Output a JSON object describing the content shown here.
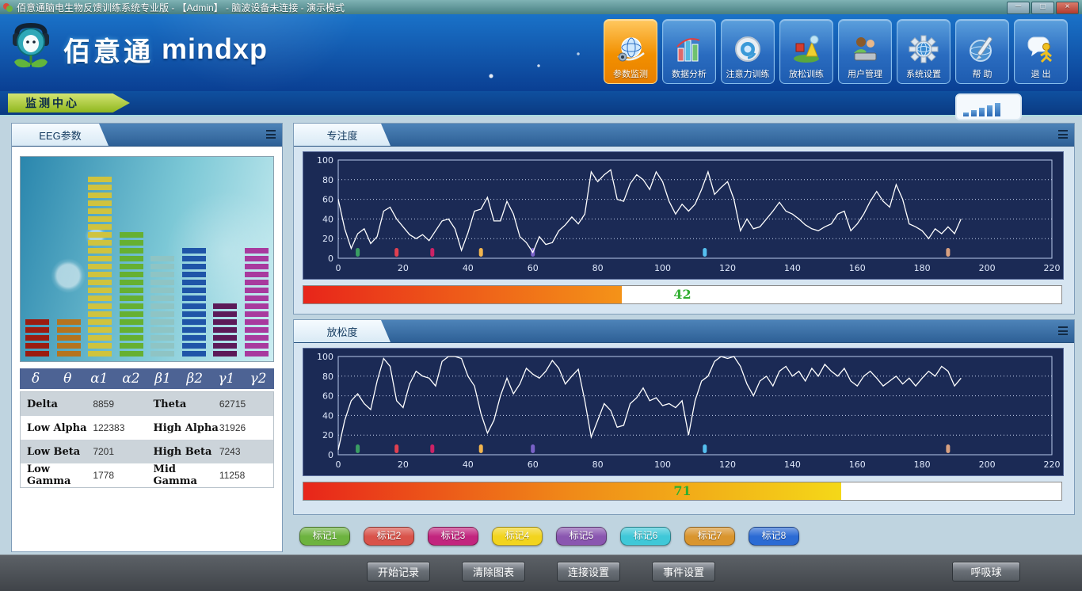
{
  "window": {
    "title": "佰意通脑电生物反馈训练系统专业版 - 【Admin】 - 脑波设备未连接 - 演示模式",
    "controls": {
      "minimize": "－",
      "maximize": "□",
      "close": "×"
    }
  },
  "header": {
    "brand_cn": "佰意通",
    "brand_en": "mindxp",
    "toolbar": [
      {
        "label": "参数监测",
        "icon": "monitor-globe-icon",
        "active": true
      },
      {
        "label": "数据分析",
        "icon": "bar-chart-icon",
        "active": false
      },
      {
        "label": "注意力训练",
        "icon": "attention-shutter-icon",
        "active": false
      },
      {
        "label": "放松训练",
        "icon": "relax-shapes-icon",
        "active": false
      },
      {
        "label": "用户管理",
        "icon": "users-icon",
        "active": false
      },
      {
        "label": "系统设置",
        "icon": "gear-globe-icon",
        "active": false
      },
      {
        "label": "帮 助",
        "icon": "help-pen-globe-icon",
        "active": false
      },
      {
        "label": "退 出",
        "icon": "exit-messenger-icon",
        "active": false
      }
    ]
  },
  "nav": {
    "center_tab": "监测中心",
    "signal_icon": "signal-strength-icon"
  },
  "eeg": {
    "tab": "EEG参数",
    "equalizer": [
      {
        "band": "delta",
        "color": "#9b1c10",
        "segments": 5
      },
      {
        "band": "theta",
        "color": "#b5741f",
        "segments": 5
      },
      {
        "band": "alpha1",
        "color": "#cfc33e",
        "segments": 23
      },
      {
        "band": "alpha2",
        "color": "#66b031",
        "segments": 16
      },
      {
        "band": "beta1",
        "color": "#8fc4c4",
        "segments": 13
      },
      {
        "band": "beta2",
        "color": "#1f55a8",
        "segments": 14
      },
      {
        "band": "gamma1",
        "color": "#5c1a58",
        "segments": 7
      },
      {
        "band": "gamma2",
        "color": "#a83a9e",
        "segments": 14
      }
    ],
    "bands": [
      "δ",
      "θ",
      "α1",
      "α2",
      "β1",
      "β2",
      "γ1",
      "γ2"
    ],
    "table": [
      {
        "l1": "Delta",
        "v1": "8859",
        "l2": "Theta",
        "v2": "62715"
      },
      {
        "l1": "Low Alpha",
        "v1": "122383",
        "l2": "High Alpha",
        "v2": "31926"
      },
      {
        "l1": "Low Beta",
        "v1": "7201",
        "l2": "High Beta",
        "v2": "7243"
      },
      {
        "l1": "Low Gamma",
        "v1": "1778",
        "l2": "Mid Gamma",
        "v2": "11258"
      }
    ]
  },
  "chart_data": [
    {
      "type": "line",
      "title": "专注度",
      "xlim": [
        0,
        220
      ],
      "ylim": [
        0,
        100
      ],
      "x_ticks": [
        0,
        20,
        40,
        60,
        80,
        100,
        120,
        140,
        160,
        180,
        200,
        220
      ],
      "y_ticks": [
        0,
        20,
        40,
        60,
        80,
        100
      ],
      "x_step": 2,
      "values": [
        60,
        30,
        10,
        25,
        30,
        15,
        22,
        48,
        52,
        40,
        32,
        24,
        20,
        24,
        18,
        28,
        38,
        40,
        30,
        8,
        26,
        48,
        50,
        62,
        38,
        38,
        58,
        45,
        22,
        16,
        6,
        22,
        14,
        16,
        28,
        34,
        42,
        35,
        45,
        88,
        78,
        85,
        90,
        60,
        58,
        76,
        85,
        80,
        70,
        88,
        78,
        58,
        45,
        55,
        48,
        55,
        70,
        88,
        65,
        72,
        78,
        60,
        28,
        40,
        30,
        32,
        40,
        48,
        57,
        48,
        45,
        40,
        34,
        30,
        28,
        32,
        35,
        45,
        48,
        28,
        35,
        45,
        58,
        68,
        58,
        52,
        75,
        60,
        35,
        32,
        28,
        20,
        30,
        25,
        32,
        25,
        40
      ],
      "current_value": 42,
      "bar_gradient": [
        "#e8251a",
        "#f49318"
      ],
      "markers": [
        {
          "x": 6,
          "color": "#3a9e63"
        },
        {
          "x": 18,
          "color": "#e04050"
        },
        {
          "x": 29,
          "color": "#cc2266"
        },
        {
          "x": 44,
          "color": "#f2b54e"
        },
        {
          "x": 60,
          "color": "#7a62c8"
        },
        {
          "x": 113,
          "color": "#55c0f0"
        },
        {
          "x": 188,
          "color": "#d8a080"
        }
      ]
    },
    {
      "type": "line",
      "title": "放松度",
      "xlim": [
        0,
        220
      ],
      "ylim": [
        0,
        100
      ],
      "x_ticks": [
        0,
        20,
        40,
        60,
        80,
        100,
        120,
        140,
        160,
        180,
        200,
        220
      ],
      "y_ticks": [
        0,
        20,
        40,
        60,
        80,
        100
      ],
      "x_step": 2,
      "values": [
        5,
        35,
        55,
        62,
        52,
        46,
        75,
        98,
        90,
        55,
        48,
        72,
        85,
        80,
        78,
        70,
        95,
        100,
        100,
        98,
        80,
        70,
        42,
        22,
        35,
        60,
        78,
        62,
        72,
        88,
        82,
        78,
        85,
        96,
        88,
        72,
        80,
        87,
        55,
        18,
        35,
        52,
        45,
        28,
        30,
        52,
        58,
        68,
        55,
        58,
        50,
        52,
        48,
        55,
        20,
        55,
        75,
        80,
        95,
        100,
        98,
        100,
        90,
        72,
        60,
        75,
        80,
        70,
        85,
        90,
        80,
        85,
        75,
        88,
        80,
        92,
        85,
        80,
        88,
        75,
        70,
        80,
        85,
        78,
        70,
        75,
        80,
        72,
        78,
        70,
        78,
        85,
        80,
        90,
        85,
        70,
        78
      ],
      "current_value": 71,
      "bar_gradient": [
        "#e8251a",
        "#f08a18",
        "#f4d818"
      ],
      "markers": [
        {
          "x": 6,
          "color": "#3a9e63"
        },
        {
          "x": 18,
          "color": "#e04050"
        },
        {
          "x": 29,
          "color": "#cc2266"
        },
        {
          "x": 44,
          "color": "#f2b54e"
        },
        {
          "x": 60,
          "color": "#7a62c8"
        },
        {
          "x": 113,
          "color": "#55c0f0"
        },
        {
          "x": 188,
          "color": "#d8a080"
        }
      ]
    }
  ],
  "marker_buttons": [
    {
      "label": "标记1",
      "color": "#6db33f"
    },
    {
      "label": "标记2",
      "color": "#d9534a"
    },
    {
      "label": "标记3",
      "color": "#c2257e"
    },
    {
      "label": "标记4",
      "color": "#f2d41e"
    },
    {
      "label": "标记5",
      "color": "#8a56b0"
    },
    {
      "label": "标记6",
      "color": "#3fc8d8"
    },
    {
      "label": "标记7",
      "color": "#d9952e"
    },
    {
      "label": "标记8",
      "color": "#2b6bd4"
    }
  ],
  "footer": {
    "buttons": [
      "开始记录",
      "清除图表",
      "连接设置",
      "事件设置"
    ],
    "breath_button": "呼吸球"
  }
}
